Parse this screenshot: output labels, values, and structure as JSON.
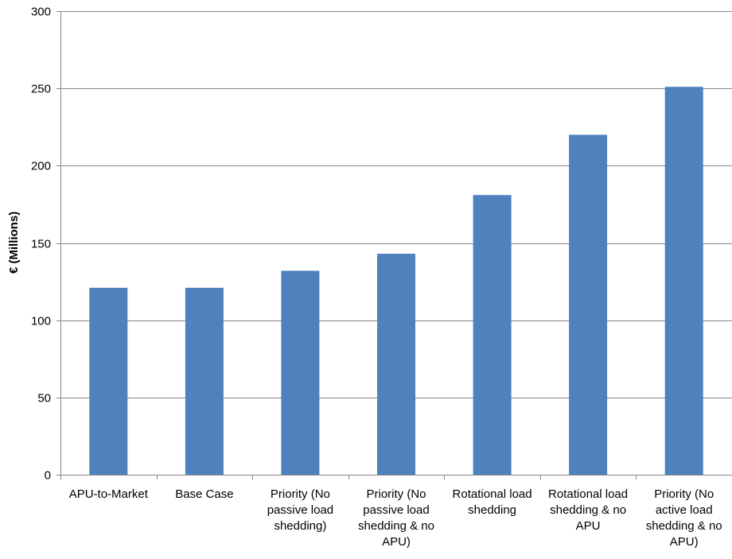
{
  "chart_data": {
    "type": "bar",
    "title": "",
    "xlabel": "",
    "ylabel": "€ (Millions)",
    "ylim": [
      0,
      300
    ],
    "yticks": [
      0,
      50,
      100,
      150,
      200,
      250,
      300
    ],
    "grid": true,
    "legend": "none",
    "bar_color": "#4F81BD",
    "categories": [
      "APU-to-Market",
      "Base Case",
      "Priority (No passive load shedding)",
      "Priority (No passive load shedding & no APU)",
      "Rotational load shedding",
      "Rotational load shedding & no APU",
      "Priority (No active load shedding & no APU)"
    ],
    "category_lines": [
      [
        "APU-to-Market"
      ],
      [
        "Base Case"
      ],
      [
        "Priority (No",
        "passive load",
        "shedding)"
      ],
      [
        "Priority (No",
        "passive load",
        "shedding & no",
        "APU)"
      ],
      [
        "Rotational load",
        "shedding"
      ],
      [
        "Rotational load",
        "shedding & no",
        "APU"
      ],
      [
        "Priority (No",
        "active load",
        "shedding & no",
        "APU)"
      ]
    ],
    "values": [
      121,
      121,
      132,
      143,
      181,
      220,
      251
    ]
  }
}
